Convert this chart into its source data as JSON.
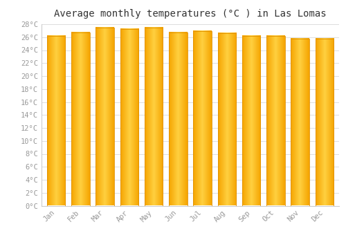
{
  "title": "Average monthly temperatures (°C ) in Las Lomas",
  "months": [
    "Jan",
    "Feb",
    "Mar",
    "Apr",
    "May",
    "Jun",
    "Jul",
    "Aug",
    "Sep",
    "Oct",
    "Nov",
    "Dec"
  ],
  "values": [
    26.2,
    26.7,
    27.5,
    27.3,
    27.5,
    26.7,
    26.9,
    26.6,
    26.2,
    26.2,
    25.8,
    25.8
  ],
  "ylim": [
    0,
    28
  ],
  "ytick_step": 2,
  "bar_color_left": "#F5A400",
  "bar_color_center": "#FFD040",
  "bar_color_right": "#F5A400",
  "background_color": "#ffffff",
  "grid_color": "#dddddd",
  "title_fontsize": 10,
  "tick_fontsize": 7.5,
  "tick_color": "#999999",
  "font_family": "monospace",
  "title_color": "#333333"
}
